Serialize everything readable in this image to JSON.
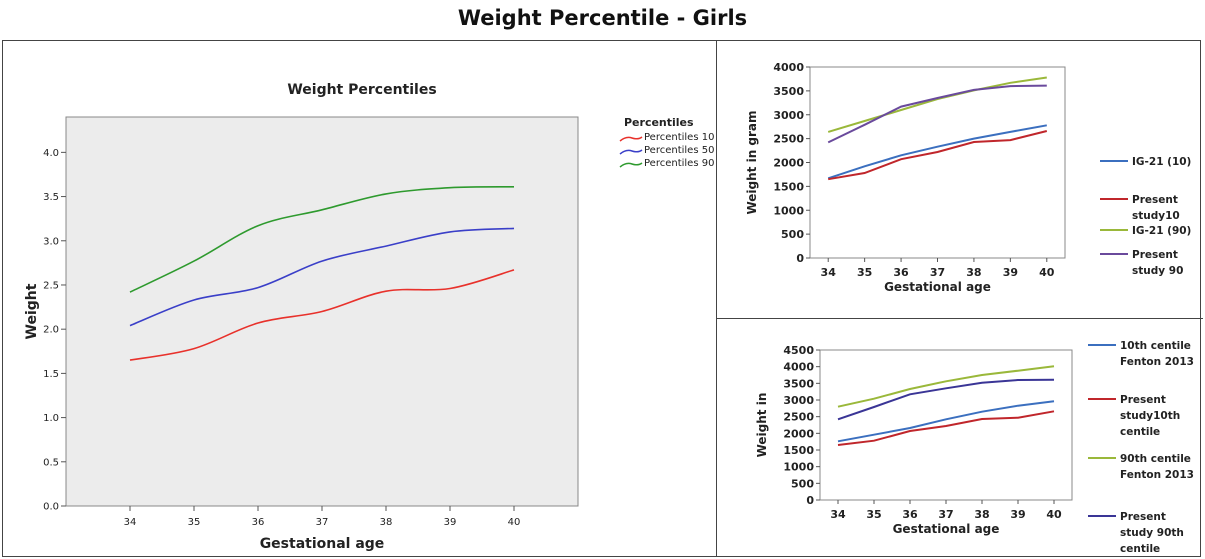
{
  "page": {
    "title": "Weight Percentile - Girls"
  },
  "chart_data": [
    {
      "type": "line",
      "title": "Weight Percentiles",
      "xlabel": "Gestational age",
      "ylabel": "Weight",
      "x": [
        34,
        35,
        36,
        37,
        38,
        39,
        40
      ],
      "xlim": [
        33,
        41
      ],
      "ylim": [
        0.0,
        4.4
      ],
      "y_ticks": [
        "0.0",
        "0.5",
        "1.0",
        "1.5",
        "2.0",
        "2.5",
        "3.0",
        "3.5",
        "4.0"
      ],
      "legend_title": "Percentiles",
      "legend_position": "right",
      "background": "#ececec",
      "series": [
        {
          "name": "Percentiles 10",
          "color": "#e8312b",
          "values": [
            1.65,
            1.78,
            2.07,
            2.2,
            2.43,
            2.46,
            2.67
          ]
        },
        {
          "name": "Percentiles 50",
          "color": "#3a3fc8",
          "values": [
            2.04,
            2.33,
            2.47,
            2.77,
            2.94,
            3.1,
            3.14
          ]
        },
        {
          "name": "Percentiles 90",
          "color": "#2e9a2e",
          "values": [
            2.42,
            2.77,
            3.17,
            3.35,
            3.53,
            3.6,
            3.61
          ]
        }
      ]
    },
    {
      "type": "line",
      "xlabel": "Gestational age",
      "ylabel": "Weight in gram",
      "x": [
        34,
        35,
        36,
        37,
        38,
        39,
        40
      ],
      "ylim": [
        0,
        4000
      ],
      "y_ticks": [
        "0",
        "500",
        "1000",
        "1500",
        "2000",
        "2500",
        "3000",
        "3500",
        "4000"
      ],
      "legend_position": "right",
      "series": [
        {
          "name": "IG-21 (10)",
          "label_lines": [
            "IG-21 (10)"
          ],
          "color": "#3b6fbf",
          "values": [
            1670,
            1920,
            2150,
            2330,
            2500,
            2640,
            2780
          ]
        },
        {
          "name": "Present study10",
          "label_lines": [
            "Present",
            "study10"
          ],
          "color": "#c0262b",
          "values": [
            1650,
            1780,
            2070,
            2220,
            2430,
            2470,
            2660
          ]
        },
        {
          "name": "IG-21 (90)",
          "label_lines": [
            "IG-21 (90)"
          ],
          "color": "#9ab83a",
          "values": [
            2640,
            2870,
            3100,
            3330,
            3510,
            3670,
            3780
          ]
        },
        {
          "name": "Present study 90",
          "label_lines": [
            "Present",
            "study 90"
          ],
          "color": "#6a4a9c",
          "values": [
            2420,
            2790,
            3170,
            3350,
            3520,
            3600,
            3610
          ]
        }
      ]
    },
    {
      "type": "line",
      "xlabel": "Gestational age",
      "ylabel": "Weight in",
      "x": [
        34,
        35,
        36,
        37,
        38,
        39,
        40
      ],
      "ylim": [
        0,
        4500
      ],
      "y_ticks": [
        "0",
        "500",
        "1000",
        "1500",
        "2000",
        "2500",
        "3000",
        "3500",
        "4000",
        "4500"
      ],
      "legend_position": "right",
      "series": [
        {
          "name": "10th centile Fenton 2013",
          "label_lines": [
            "10th centile",
            "Fenton 2013"
          ],
          "color": "#3b6fbf",
          "values": [
            1760,
            1960,
            2160,
            2420,
            2650,
            2830,
            2960
          ]
        },
        {
          "name": "Present study10th centile",
          "label_lines": [
            "Present",
            "study10th",
            "centile"
          ],
          "color": "#c0262b",
          "values": [
            1650,
            1780,
            2070,
            2220,
            2430,
            2470,
            2660
          ]
        },
        {
          "name": "90th centile Fenton 2013",
          "label_lines": [
            "90th centile",
            "Fenton 2013"
          ],
          "color": "#9ab83a",
          "values": [
            2800,
            3040,
            3330,
            3560,
            3750,
            3880,
            4010
          ]
        },
        {
          "name": "Present study 90th centile",
          "label_lines": [
            "Present",
            "study 90th",
            "centile"
          ],
          "color": "#3a3596",
          "values": [
            2420,
            2790,
            3170,
            3350,
            3520,
            3600,
            3610
          ]
        }
      ]
    }
  ]
}
